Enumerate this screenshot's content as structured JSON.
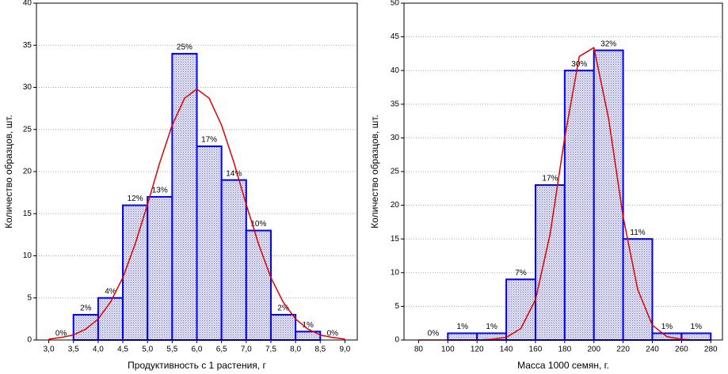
{
  "chart_data": [
    {
      "type": "histogram",
      "x_label": "Продуктивность с 1 растения, г",
      "y_label": "Количество образцов, шт.",
      "bins": [
        3.0,
        3.5,
        4.0,
        4.5,
        5.0,
        5.5,
        6.0,
        6.5,
        7.0,
        7.5,
        8.0,
        8.5,
        9.0
      ],
      "values": [
        0,
        3,
        5,
        16,
        17,
        34,
        23,
        19,
        13,
        3,
        1,
        0
      ],
      "bar_labels": [
        "0%",
        "2%",
        "4%",
        "12%",
        "13%",
        "25%",
        "17%",
        "14%",
        "10%",
        "2%",
        "1%",
        "0%"
      ],
      "color": "#0000ff",
      "curve_color": "#e00000",
      "curve": {
        "x": [
          3.0,
          3.25,
          3.5,
          3.75,
          4.0,
          4.25,
          4.5,
          4.75,
          5.0,
          5.25,
          5.5,
          5.75,
          6.0,
          6.25,
          6.5,
          6.75,
          7.0,
          7.25,
          7.5,
          7.75,
          8.0,
          8.25,
          8.5,
          8.75,
          9.0
        ],
        "y": [
          0.1,
          0.3,
          0.6,
          1.3,
          2.5,
          4.5,
          7.4,
          11.4,
          16.1,
          21.1,
          25.5,
          28.7,
          29.8,
          28.7,
          25.5,
          21.1,
          16.1,
          11.4,
          7.4,
          4.5,
          2.5,
          1.3,
          0.6,
          0.3,
          0.1
        ]
      },
      "xlim": [
        2.75,
        9.25
      ],
      "ylim": [
        0,
        40
      ],
      "xticks": [
        {
          "value": 3.0,
          "label": "3,0"
        },
        {
          "value": 3.5,
          "label": "3,5"
        },
        {
          "value": 4.0,
          "label": "4,0"
        },
        {
          "value": 4.5,
          "label": "4,5"
        },
        {
          "value": 5.0,
          "label": "5,0"
        },
        {
          "value": 5.5,
          "label": "5,5"
        },
        {
          "value": 6.0,
          "label": "6,0"
        },
        {
          "value": 6.5,
          "label": "6,5"
        },
        {
          "value": 7.0,
          "label": "7,0"
        },
        {
          "value": 7.5,
          "label": "7,5"
        },
        {
          "value": 8.0,
          "label": "8,0"
        },
        {
          "value": 8.5,
          "label": "8,5"
        },
        {
          "value": 9.0,
          "label": "9,0"
        }
      ],
      "yticks": [
        0,
        5,
        10,
        15,
        20,
        25,
        30,
        35,
        40
      ],
      "grid": true
    },
    {
      "type": "histogram",
      "x_label": "Масса 1000 семян, г.",
      "y_label": "Количество образцов, шт.",
      "bins": [
        80,
        100,
        120,
        140,
        160,
        180,
        200,
        220,
        240,
        260,
        280
      ],
      "values": [
        0,
        1,
        1,
        9,
        23,
        40,
        43,
        15,
        1,
        1
      ],
      "bar_labels": [
        "0%",
        "1%",
        "1%",
        "7%",
        "17%",
        "30%",
        "32%",
        "11%",
        "1%",
        "1%"
      ],
      "color": "#0000ff",
      "curve_color": "#e00000",
      "curve": {
        "x": [
          80,
          90,
          100,
          110,
          120,
          130,
          140,
          150,
          160,
          170,
          180,
          190,
          200,
          210,
          220,
          230,
          240,
          250,
          260,
          270,
          280
        ],
        "y": [
          0,
          0,
          0,
          0,
          0,
          0.1,
          0.4,
          1.7,
          6.0,
          15.7,
          30.0,
          42.1,
          43.4,
          32.9,
          18.3,
          7.5,
          2.2,
          0.5,
          0.1,
          0,
          0
        ]
      },
      "xlim": [
        70,
        288
      ],
      "ylim": [
        0,
        50
      ],
      "xticks": [
        80,
        100,
        120,
        140,
        160,
        180,
        200,
        220,
        240,
        260,
        280
      ],
      "yticks": [
        0,
        5,
        10,
        15,
        20,
        25,
        30,
        35,
        40,
        45,
        50
      ],
      "grid": true
    }
  ]
}
